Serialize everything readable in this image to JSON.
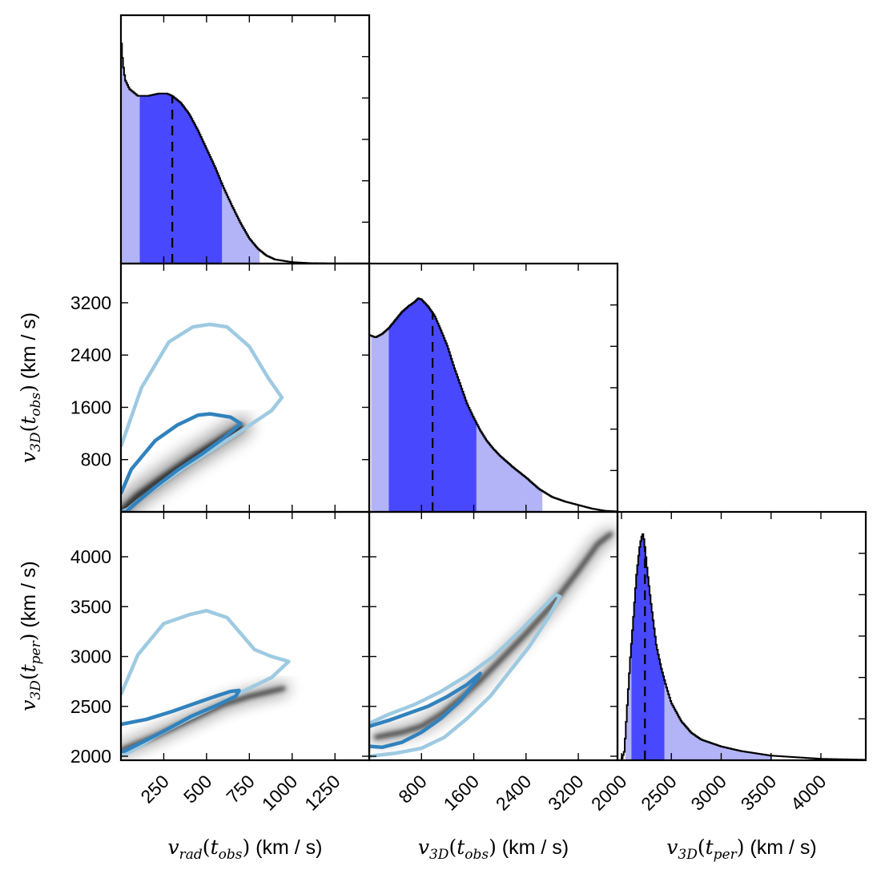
{
  "chart_data": {
    "type": "corner",
    "colors": {
      "hist_inner": "#4848ff",
      "hist_outer": "#b3b3f7",
      "contour_inner": "#3182bd",
      "contour_outer": "#9ecae1",
      "density": "#000000"
    },
    "variables": [
      {
        "label_var": "v",
        "label_sub": "rad",
        "label_arg": "t",
        "label_arg_sub": "obs",
        "unit": " (km / s)",
        "range": [
          0,
          1450
        ],
        "ticks": [
          250,
          500,
          750,
          1000,
          1250
        ]
      },
      {
        "label_var": "v",
        "label_sub": "3D",
        "label_arg": "t",
        "label_arg_sub": "obs",
        "unit": " (km / s)",
        "range": [
          0,
          3800
        ],
        "ticks": [
          800,
          1600,
          2400,
          3200
        ]
      },
      {
        "label_var": "v",
        "label_sub": "3D",
        "label_arg": "t",
        "label_arg_sub": "per",
        "unit": " (km / s)",
        "range": [
          1960,
          4450
        ],
        "ticks": [
          2000,
          2500,
          3000,
          3500,
          4000
        ]
      }
    ],
    "marginals": [
      {
        "variable": 0,
        "median": 300,
        "inner_interval": [
          110,
          590
        ],
        "outer_interval": [
          0,
          810
        ],
        "curve": [
          [
            0,
            1.0
          ],
          [
            5,
            0.93
          ],
          [
            12,
            0.87
          ],
          [
            25,
            0.8
          ],
          [
            50,
            0.76
          ],
          [
            100,
            0.73
          ],
          [
            160,
            0.73
          ],
          [
            220,
            0.74
          ],
          [
            270,
            0.74
          ],
          [
            300,
            0.73
          ],
          [
            350,
            0.7
          ],
          [
            400,
            0.65
          ],
          [
            450,
            0.58
          ],
          [
            500,
            0.5
          ],
          [
            550,
            0.42
          ],
          [
            600,
            0.33
          ],
          [
            650,
            0.25
          ],
          [
            700,
            0.175
          ],
          [
            750,
            0.11
          ],
          [
            800,
            0.065
          ],
          [
            850,
            0.035
          ],
          [
            900,
            0.018
          ],
          [
            1000,
            0.006
          ],
          [
            1100,
            0.002
          ],
          [
            1250,
            0.0005
          ],
          [
            1450,
            0.0002
          ]
        ]
      },
      {
        "variable": 1,
        "median": 970,
        "inner_interval": [
          300,
          1640
        ],
        "outer_interval": [
          30,
          2650
        ],
        "curve": [
          [
            0,
            0.77
          ],
          [
            100,
            0.76
          ],
          [
            200,
            0.775
          ],
          [
            300,
            0.8
          ],
          [
            400,
            0.835
          ],
          [
            500,
            0.87
          ],
          [
            600,
            0.895
          ],
          [
            700,
            0.915
          ],
          [
            750,
            0.93
          ],
          [
            800,
            0.925
          ],
          [
            900,
            0.895
          ],
          [
            1000,
            0.855
          ],
          [
            1100,
            0.79
          ],
          [
            1200,
            0.72
          ],
          [
            1300,
            0.63
          ],
          [
            1400,
            0.55
          ],
          [
            1500,
            0.47
          ],
          [
            1600,
            0.41
          ],
          [
            1700,
            0.355
          ],
          [
            1800,
            0.31
          ],
          [
            1900,
            0.275
          ],
          [
            2000,
            0.245
          ],
          [
            2200,
            0.195
          ],
          [
            2400,
            0.15
          ],
          [
            2600,
            0.1
          ],
          [
            2800,
            0.065
          ],
          [
            3000,
            0.045
          ],
          [
            3200,
            0.03
          ],
          [
            3400,
            0.015
          ],
          [
            3600,
            0.005
          ],
          [
            3800,
            0.002
          ]
        ]
      },
      {
        "variable": 2,
        "median": 2235,
        "inner_interval": [
          2100,
          2430
        ],
        "outer_interval": [
          2040,
          3510
        ],
        "curve": [
          [
            1960,
            0.0
          ],
          [
            2000,
            0.0
          ],
          [
            2030,
            0.04
          ],
          [
            2060,
            0.25
          ],
          [
            2090,
            0.45
          ],
          [
            2120,
            0.62
          ],
          [
            2150,
            0.8
          ],
          [
            2180,
            0.92
          ],
          [
            2200,
            0.97
          ],
          [
            2215,
            0.985
          ],
          [
            2230,
            0.95
          ],
          [
            2260,
            0.82
          ],
          [
            2300,
            0.67
          ],
          [
            2350,
            0.5
          ],
          [
            2400,
            0.4
          ],
          [
            2450,
            0.32
          ],
          [
            2500,
            0.25
          ],
          [
            2600,
            0.17
          ],
          [
            2700,
            0.12
          ],
          [
            2800,
            0.09
          ],
          [
            3000,
            0.06
          ],
          [
            3200,
            0.04
          ],
          [
            3500,
            0.02
          ],
          [
            4000,
            0.006
          ],
          [
            4450,
            0.002
          ]
        ]
      }
    ],
    "joints": [
      {
        "x_variable": 0,
        "y_variable": 1,
        "density_ridge": [
          [
            0,
            0
          ],
          [
            100,
            250
          ],
          [
            250,
            530
          ],
          [
            400,
            800
          ],
          [
            550,
            1050
          ],
          [
            700,
            1300
          ]
        ],
        "density_width": 200,
        "contour_inner": [
          [
            0,
            280
          ],
          [
            60,
            650
          ],
          [
            200,
            1090
          ],
          [
            330,
            1330
          ],
          [
            450,
            1480
          ],
          [
            520,
            1500
          ],
          [
            640,
            1450
          ],
          [
            700,
            1350
          ],
          [
            600,
            1130
          ],
          [
            480,
            900
          ],
          [
            330,
            640
          ],
          [
            200,
            380
          ],
          [
            80,
            120
          ],
          [
            30,
            0
          ],
          [
            0,
            0
          ]
        ],
        "contour_outer": [
          [
            0,
            1000
          ],
          [
            120,
            1900
          ],
          [
            280,
            2600
          ],
          [
            420,
            2830
          ],
          [
            520,
            2870
          ],
          [
            620,
            2830
          ],
          [
            750,
            2530
          ],
          [
            860,
            2050
          ],
          [
            940,
            1750
          ],
          [
            880,
            1550
          ],
          [
            720,
            1270
          ],
          [
            550,
            980
          ],
          [
            370,
            680
          ],
          [
            220,
            400
          ],
          [
            100,
            170
          ],
          [
            40,
            40
          ],
          [
            0,
            0
          ]
        ]
      },
      {
        "x_variable": 0,
        "y_variable": 2,
        "density_ridge": [
          [
            0,
            2060
          ],
          [
            200,
            2200
          ],
          [
            400,
            2360
          ],
          [
            600,
            2520
          ],
          [
            750,
            2600
          ],
          [
            950,
            2680
          ]
        ],
        "density_width": 75,
        "contour_inner": [
          [
            0,
            2320
          ],
          [
            150,
            2370
          ],
          [
            300,
            2450
          ],
          [
            450,
            2540
          ],
          [
            550,
            2600
          ],
          [
            640,
            2650
          ],
          [
            690,
            2660
          ],
          [
            670,
            2600
          ],
          [
            560,
            2510
          ],
          [
            410,
            2400
          ],
          [
            250,
            2250
          ],
          [
            100,
            2120
          ],
          [
            20,
            2050
          ],
          [
            0,
            2050
          ]
        ],
        "contour_outer": [
          [
            0,
            2620
          ],
          [
            100,
            3020
          ],
          [
            250,
            3330
          ],
          [
            400,
            3420
          ],
          [
            500,
            3460
          ],
          [
            620,
            3390
          ],
          [
            780,
            3070
          ],
          [
            880,
            3000
          ],
          [
            980,
            2950
          ],
          [
            880,
            2790
          ],
          [
            700,
            2640
          ],
          [
            550,
            2500
          ],
          [
            380,
            2360
          ],
          [
            200,
            2200
          ],
          [
            50,
            2040
          ],
          [
            0,
            2010
          ]
        ]
      },
      {
        "x_variable": 1,
        "y_variable": 2,
        "density_ridge": [
          [
            100,
            2190
          ],
          [
            500,
            2240
          ],
          [
            800,
            2300
          ],
          [
            1100,
            2420
          ],
          [
            1400,
            2580
          ],
          [
            1700,
            2760
          ],
          [
            2000,
            2960
          ],
          [
            2400,
            3230
          ],
          [
            2800,
            3520
          ],
          [
            3200,
            3860
          ],
          [
            3500,
            4130
          ],
          [
            3700,
            4230
          ]
        ],
        "density_width": 55,
        "contour_inner": [
          [
            0,
            2300
          ],
          [
            300,
            2360
          ],
          [
            600,
            2430
          ],
          [
            900,
            2500
          ],
          [
            1200,
            2600
          ],
          [
            1500,
            2720
          ],
          [
            1700,
            2830
          ],
          [
            1650,
            2770
          ],
          [
            1400,
            2560
          ],
          [
            1100,
            2380
          ],
          [
            800,
            2240
          ],
          [
            500,
            2140
          ],
          [
            200,
            2090
          ],
          [
            0,
            2100
          ]
        ],
        "contour_outer": [
          [
            0,
            2330
          ],
          [
            300,
            2420
          ],
          [
            700,
            2520
          ],
          [
            1100,
            2650
          ],
          [
            1500,
            2810
          ],
          [
            1900,
            3000
          ],
          [
            2300,
            3250
          ],
          [
            2600,
            3450
          ],
          [
            2850,
            3620
          ],
          [
            2920,
            3600
          ],
          [
            2750,
            3400
          ],
          [
            2450,
            3100
          ],
          [
            2150,
            2850
          ],
          [
            1850,
            2600
          ],
          [
            1500,
            2380
          ],
          [
            1150,
            2190
          ],
          [
            800,
            2080
          ],
          [
            400,
            2030
          ],
          [
            0,
            2000
          ]
        ]
      }
    ]
  }
}
